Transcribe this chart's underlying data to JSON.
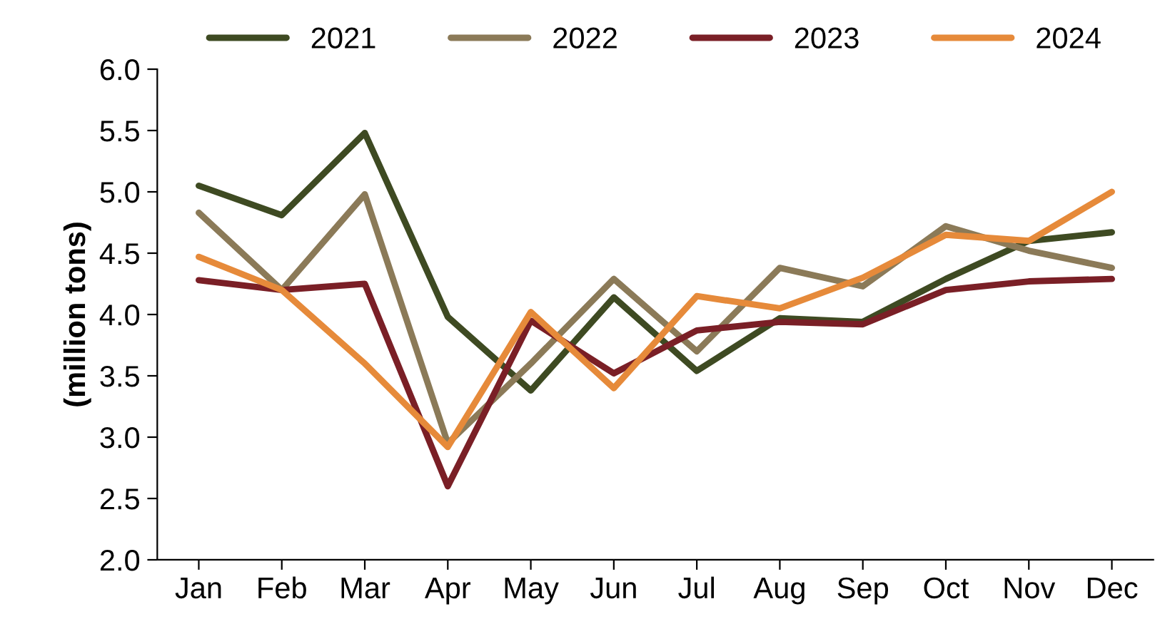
{
  "chart_data": {
    "type": "line",
    "ylabel": "(million tons)",
    "categories": [
      "Jan",
      "Feb",
      "Mar",
      "Apr",
      "May",
      "Jun",
      "Jul",
      "Aug",
      "Sep",
      "Oct",
      "Nov",
      "Dec"
    ],
    "series": [
      {
        "name": "2021",
        "color": "#3e4a22",
        "values": [
          5.05,
          4.81,
          5.48,
          3.98,
          3.38,
          4.14,
          3.54,
          3.97,
          3.94,
          4.29,
          4.6,
          4.67
        ]
      },
      {
        "name": "2022",
        "color": "#8b7a58",
        "values": [
          4.83,
          4.2,
          4.98,
          2.95,
          3.6,
          4.29,
          3.7,
          4.38,
          4.23,
          4.72,
          4.52,
          4.38
        ]
      },
      {
        "name": "2023",
        "color": "#7a1f26",
        "values": [
          4.28,
          4.2,
          4.25,
          2.6,
          3.95,
          3.52,
          3.87,
          3.94,
          3.92,
          4.2,
          4.27,
          4.29
        ]
      },
      {
        "name": "2024",
        "color": "#e68a3a",
        "values": [
          4.47,
          4.2,
          3.6,
          2.92,
          4.02,
          3.4,
          4.15,
          4.05,
          4.3,
          4.65,
          4.6,
          5.0
        ]
      }
    ],
    "ylim": [
      2.0,
      6.0
    ],
    "yticks": [
      {
        "value": 2,
        "label": "2.0"
      },
      {
        "value": 2.5,
        "label": "2.5"
      },
      {
        "value": 3,
        "label": "3.0"
      },
      {
        "value": 3.5,
        "label": "3.5"
      },
      {
        "value": 4,
        "label": "4.0"
      },
      {
        "value": 4.5,
        "label": "4.5"
      },
      {
        "value": 5,
        "label": "5.0"
      },
      {
        "value": 5.5,
        "label": "5.5"
      },
      {
        "value": 6,
        "label": "6.0"
      }
    ],
    "grid": false,
    "legend": "top",
    "marker": "none",
    "line_style": "solid"
  }
}
